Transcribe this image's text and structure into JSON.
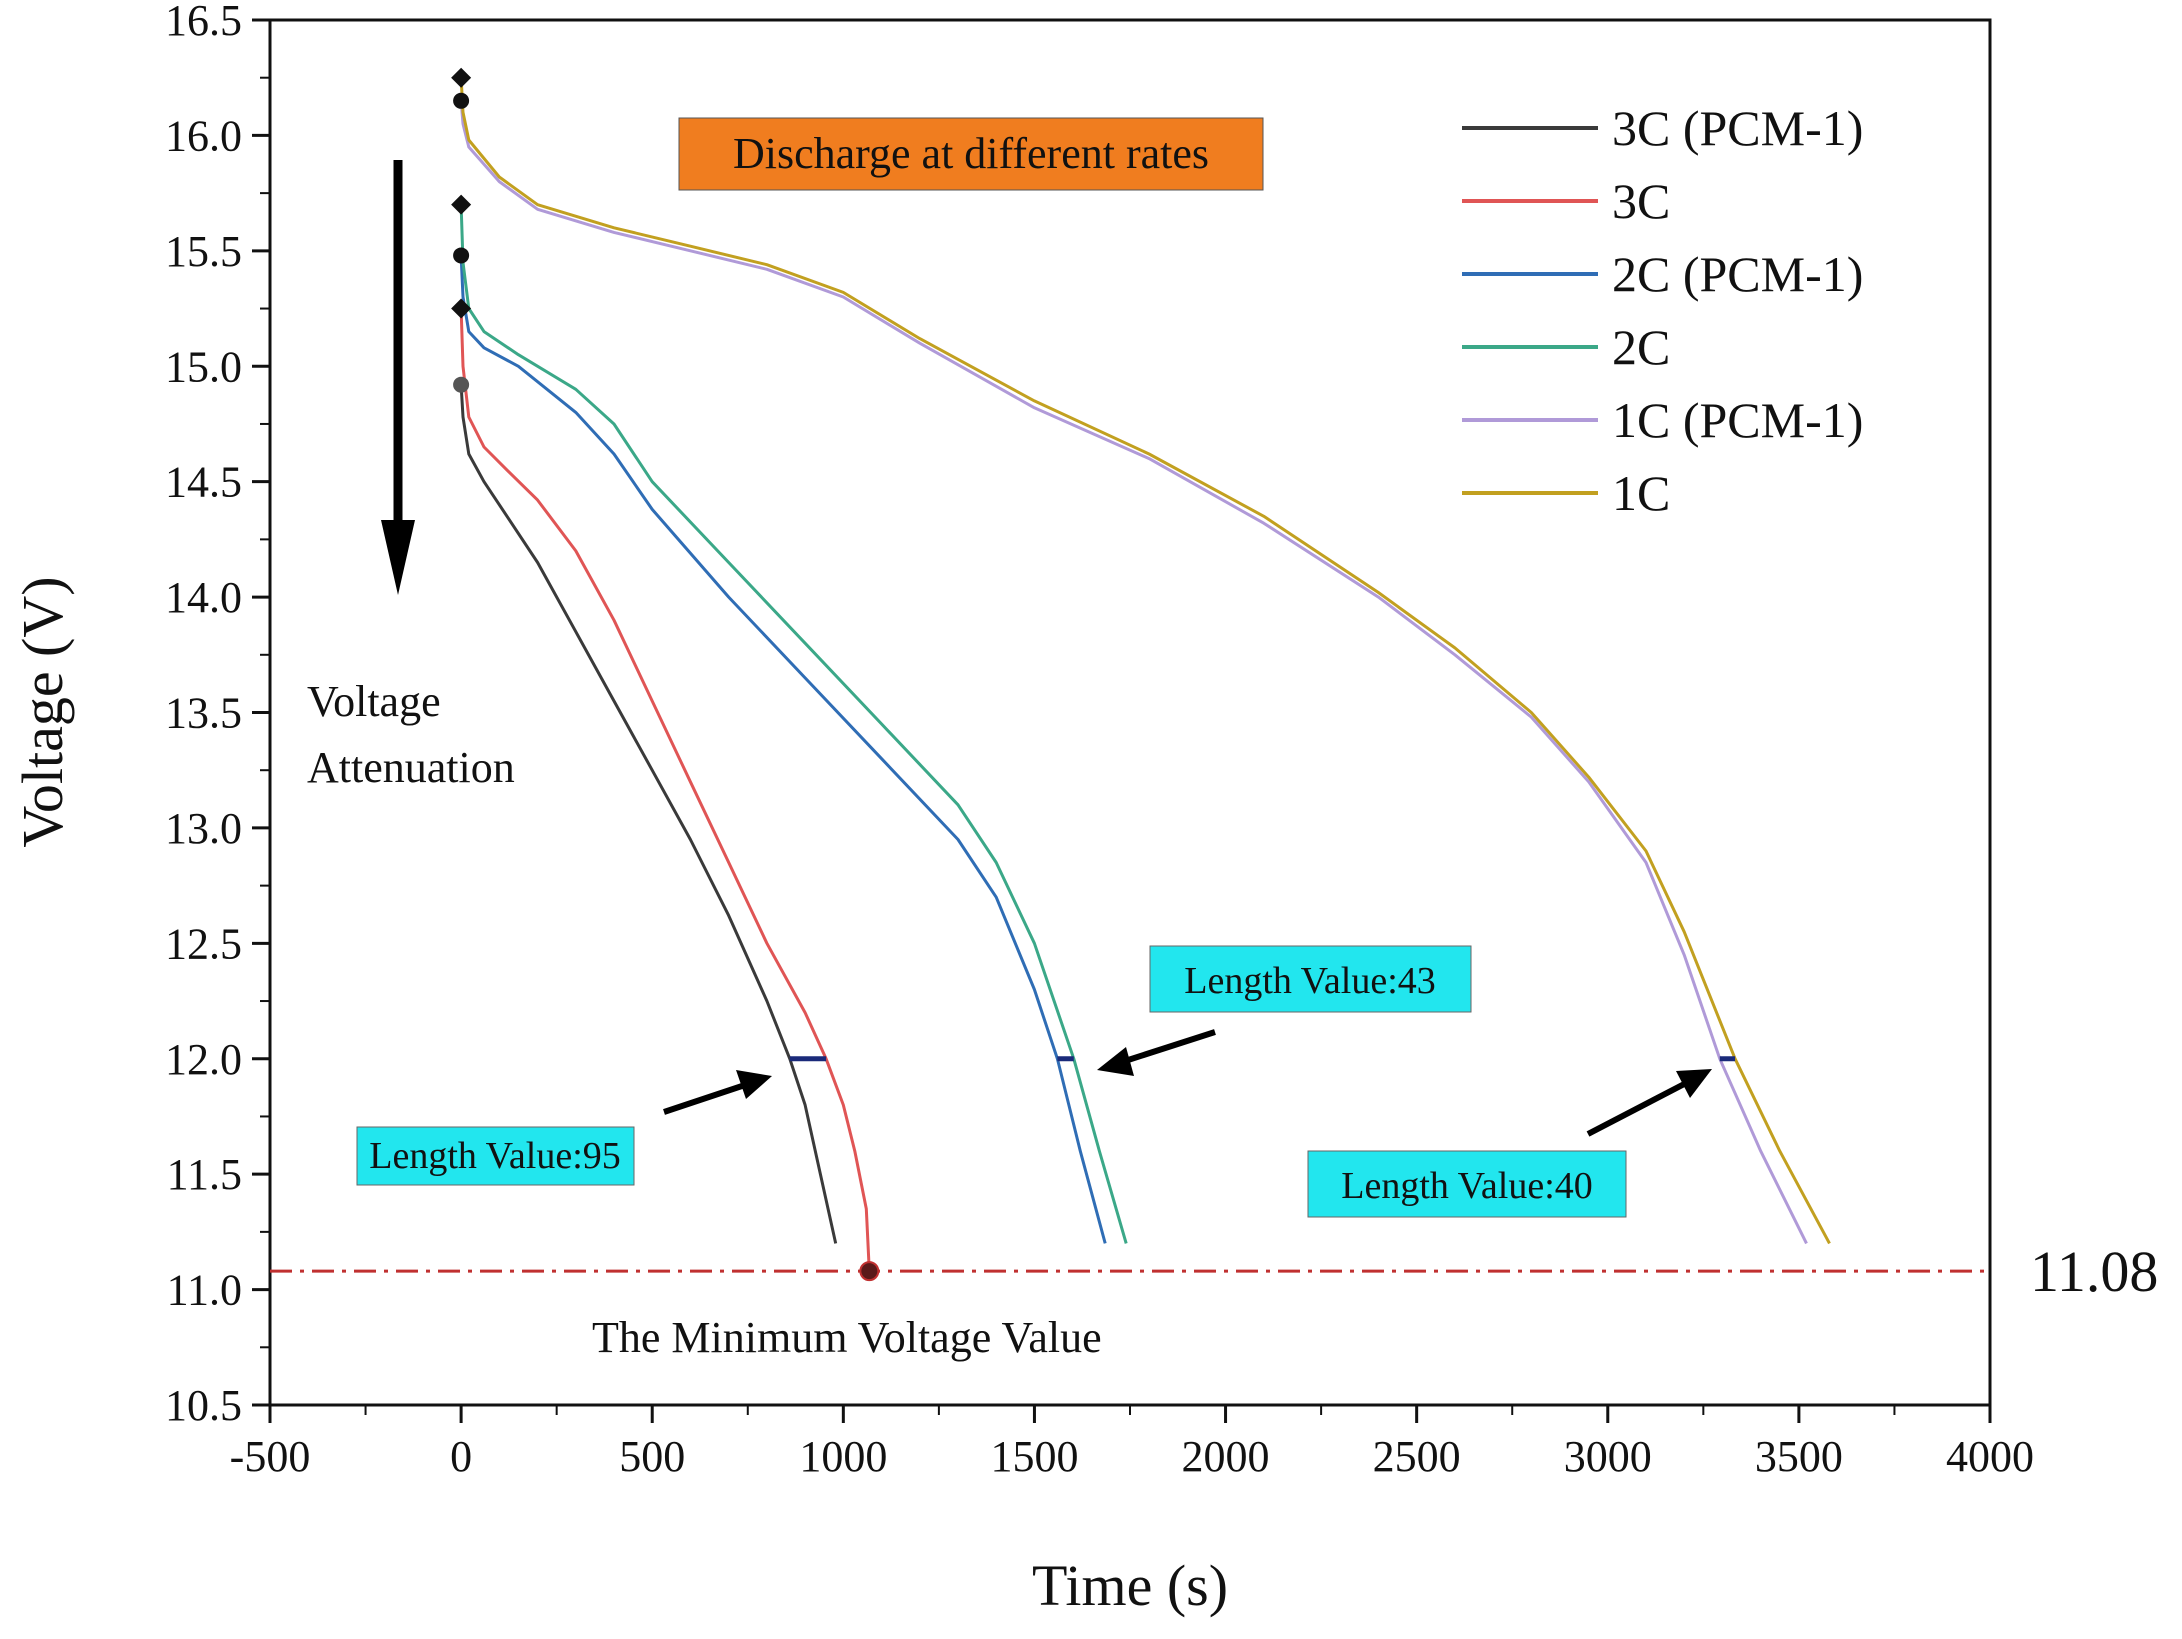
{
  "chart_data": {
    "type": "line",
    "title": "Discharge at different rates",
    "xlabel": "Time (s)",
    "ylabel": "Voltage (V)",
    "xlim": [
      -500,
      4000
    ],
    "ylim": [
      10.5,
      16.5
    ],
    "x_ticks": [
      "-500",
      "0",
      "500",
      "1000",
      "1500",
      "2000",
      "2500",
      "3000",
      "3500",
      "4000"
    ],
    "y_ticks": [
      "10.5",
      "11.0",
      "11.5",
      "12.0",
      "12.5",
      "13.0",
      "13.5",
      "14.0",
      "14.5",
      "15.0",
      "15.5",
      "16.0",
      "16.5"
    ],
    "grid": false,
    "legend_position": "top-right",
    "series": [
      {
        "name": "3C (PCM-1)",
        "color": "#3a3a3a",
        "x": [
          0,
          5,
          20,
          60,
          120,
          200,
          300,
          400,
          500,
          600,
          700,
          800,
          860,
          900,
          940,
          980
        ],
        "y": [
          14.92,
          14.78,
          14.62,
          14.5,
          14.35,
          14.15,
          13.85,
          13.55,
          13.25,
          12.95,
          12.62,
          12.25,
          12.0,
          11.8,
          11.5,
          11.2
        ]
      },
      {
        "name": "3C",
        "color": "#e05555",
        "x": [
          0,
          5,
          20,
          60,
          120,
          200,
          300,
          400,
          500,
          600,
          700,
          800,
          900,
          955,
          1000,
          1030,
          1060,
          1068
        ],
        "y": [
          15.25,
          15.0,
          14.78,
          14.65,
          14.55,
          14.42,
          14.2,
          13.9,
          13.55,
          13.2,
          12.85,
          12.5,
          12.2,
          12.0,
          11.8,
          11.6,
          11.35,
          11.08
        ]
      },
      {
        "name": "2C (PCM-1)",
        "color": "#2f6db5",
        "x": [
          0,
          5,
          20,
          60,
          150,
          300,
          400,
          500,
          700,
          900,
          1100,
          1300,
          1400,
          1500,
          1560,
          1620,
          1685
        ],
        "y": [
          15.48,
          15.3,
          15.15,
          15.08,
          15.0,
          14.8,
          14.62,
          14.38,
          14.0,
          13.65,
          13.3,
          12.95,
          12.7,
          12.3,
          12.0,
          11.6,
          11.2
        ]
      },
      {
        "name": "2C",
        "color": "#3ba888",
        "x": [
          0,
          5,
          20,
          60,
          150,
          300,
          400,
          500,
          700,
          900,
          1100,
          1300,
          1400,
          1500,
          1603,
          1670,
          1740
        ],
        "y": [
          15.7,
          15.45,
          15.25,
          15.15,
          15.05,
          14.9,
          14.75,
          14.5,
          14.15,
          13.8,
          13.45,
          13.1,
          12.85,
          12.5,
          12.0,
          11.6,
          11.2
        ]
      },
      {
        "name": "1C (PCM-1)",
        "color": "#b09ad8",
        "x": [
          0,
          5,
          20,
          100,
          200,
          400,
          600,
          800,
          1000,
          1200,
          1500,
          1800,
          2100,
          2400,
          2600,
          2800,
          2950,
          3100,
          3200,
          3293,
          3400,
          3520
        ],
        "y": [
          16.15,
          16.05,
          15.95,
          15.8,
          15.68,
          15.58,
          15.5,
          15.42,
          15.3,
          15.1,
          14.82,
          14.6,
          14.32,
          14.0,
          13.75,
          13.48,
          13.2,
          12.85,
          12.45,
          12.0,
          11.6,
          11.2
        ]
      },
      {
        "name": "1C",
        "color": "#c2a020",
        "x": [
          0,
          5,
          20,
          100,
          200,
          400,
          600,
          800,
          1000,
          1200,
          1500,
          1800,
          2100,
          2400,
          2600,
          2800,
          2950,
          3100,
          3200,
          3333,
          3450,
          3580
        ],
        "y": [
          16.25,
          16.1,
          15.98,
          15.82,
          15.7,
          15.6,
          15.52,
          15.44,
          15.32,
          15.12,
          14.85,
          14.62,
          14.35,
          14.02,
          13.78,
          13.5,
          13.22,
          12.9,
          12.55,
          12.0,
          11.6,
          11.2
        ]
      }
    ],
    "start_markers": [
      {
        "x": 0,
        "y": 16.25,
        "shape": "diamond"
      },
      {
        "x": 0,
        "y": 16.15,
        "shape": "circle"
      },
      {
        "x": 0,
        "y": 15.7,
        "shape": "diamond"
      },
      {
        "x": 0,
        "y": 15.48,
        "shape": "circle"
      },
      {
        "x": 0,
        "y": 15.25,
        "shape": "diamond"
      },
      {
        "x": 0,
        "y": 14.92,
        "shape": "circle"
      }
    ],
    "min_voltage_point": {
      "x": 1068,
      "y": 11.08
    },
    "reference_line": {
      "y": 11.08,
      "label": "11.08",
      "color": "#c03030"
    },
    "length_segments": [
      {
        "x1": 860,
        "x2": 955,
        "y": 12.0
      },
      {
        "x1": 1560,
        "x2": 1603,
        "y": 12.0
      },
      {
        "x1": 3293,
        "x2": 3333,
        "y": 12.0
      }
    ],
    "annotations": {
      "min_voltage_text": "The Minimum Voltage Value",
      "attenuation_line1": "Voltage",
      "attenuation_line2": "Attenuation",
      "length_95": "Length Value:95",
      "length_43": "Length Value:43",
      "length_40": "Length Value:40"
    },
    "colors": {
      "title_box": "#f07d1f",
      "length_box": "#22e6ee",
      "segment": "#1a2a7a"
    }
  }
}
